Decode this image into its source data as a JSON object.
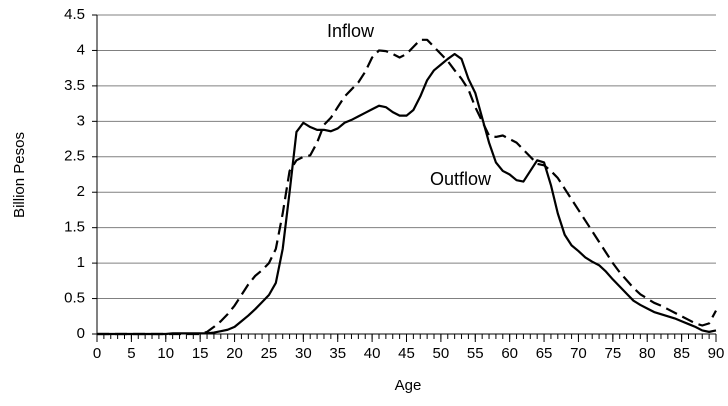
{
  "chart_data": {
    "type": "line",
    "x_label": "Age",
    "y_label": "Billion Pesos",
    "x": [
      0,
      1,
      2,
      3,
      4,
      5,
      6,
      7,
      8,
      9,
      10,
      11,
      12,
      13,
      14,
      15,
      16,
      17,
      18,
      19,
      20,
      21,
      22,
      23,
      24,
      25,
      26,
      27,
      28,
      29,
      30,
      31,
      32,
      33,
      34,
      35,
      36,
      37,
      38,
      39,
      40,
      41,
      42,
      43,
      44,
      45,
      46,
      47,
      48,
      49,
      50,
      51,
      52,
      53,
      54,
      55,
      56,
      57,
      58,
      59,
      60,
      61,
      62,
      63,
      64,
      65,
      66,
      67,
      68,
      69,
      70,
      71,
      72,
      73,
      74,
      75,
      76,
      77,
      78,
      79,
      80,
      81,
      82,
      83,
      84,
      85,
      86,
      87,
      88,
      89,
      90
    ],
    "series": [
      {
        "name": "Inflow",
        "color": "#000000",
        "dash": true,
        "values": [
          0,
          0,
          0,
          0,
          0,
          0,
          0,
          0,
          0,
          0,
          0,
          0,
          0,
          0,
          0,
          0,
          0.03,
          0.1,
          0.18,
          0.28,
          0.4,
          0.55,
          0.7,
          0.82,
          0.9,
          1.0,
          1.2,
          1.7,
          2.3,
          2.45,
          2.5,
          2.52,
          2.7,
          2.95,
          3.05,
          3.2,
          3.35,
          3.45,
          3.55,
          3.7,
          3.9,
          4.0,
          3.99,
          3.95,
          3.9,
          3.95,
          4.05,
          4.15,
          4.15,
          4.05,
          3.95,
          3.85,
          3.72,
          3.6,
          3.45,
          3.2,
          3.0,
          2.8,
          2.78,
          2.8,
          2.75,
          2.7,
          2.6,
          2.5,
          2.4,
          2.38,
          2.3,
          2.2,
          2.05,
          1.9,
          1.75,
          1.6,
          1.45,
          1.3,
          1.15,
          1.0,
          0.87,
          0.76,
          0.65,
          0.56,
          0.5,
          0.44,
          0.4,
          0.35,
          0.3,
          0.25,
          0.2,
          0.15,
          0.12,
          0.15,
          0.33
        ]
      },
      {
        "name": "Outflow",
        "color": "#000000",
        "dash": false,
        "values": [
          0,
          0,
          0,
          0,
          0,
          0,
          0,
          0,
          0,
          0,
          0,
          0.01,
          0.01,
          0.01,
          0.01,
          0.01,
          0.01,
          0.02,
          0.04,
          0.06,
          0.1,
          0.18,
          0.26,
          0.35,
          0.45,
          0.55,
          0.72,
          1.2,
          2.0,
          2.85,
          2.98,
          2.92,
          2.88,
          2.88,
          2.86,
          2.9,
          2.98,
          3.02,
          3.07,
          3.12,
          3.17,
          3.22,
          3.2,
          3.13,
          3.08,
          3.08,
          3.16,
          3.35,
          3.58,
          3.72,
          3.8,
          3.88,
          3.95,
          3.88,
          3.6,
          3.4,
          3.05,
          2.7,
          2.42,
          2.3,
          2.25,
          2.17,
          2.15,
          2.3,
          2.45,
          2.42,
          2.1,
          1.7,
          1.4,
          1.25,
          1.17,
          1.08,
          1.02,
          0.97,
          0.88,
          0.77,
          0.67,
          0.57,
          0.47,
          0.41,
          0.36,
          0.31,
          0.28,
          0.25,
          0.22,
          0.18,
          0.14,
          0.1,
          0.05,
          0.03,
          0.05
        ]
      }
    ],
    "xlim": [
      0,
      90
    ],
    "xticks": [
      0,
      5,
      10,
      15,
      20,
      25,
      30,
      35,
      40,
      45,
      50,
      55,
      60,
      65,
      70,
      75,
      80,
      85,
      90
    ],
    "ylim": [
      0,
      4.5
    ],
    "yticks": [
      0,
      0.5,
      1,
      1.5,
      2,
      2.5,
      3,
      3.5,
      4,
      4.5
    ],
    "grid": true
  }
}
